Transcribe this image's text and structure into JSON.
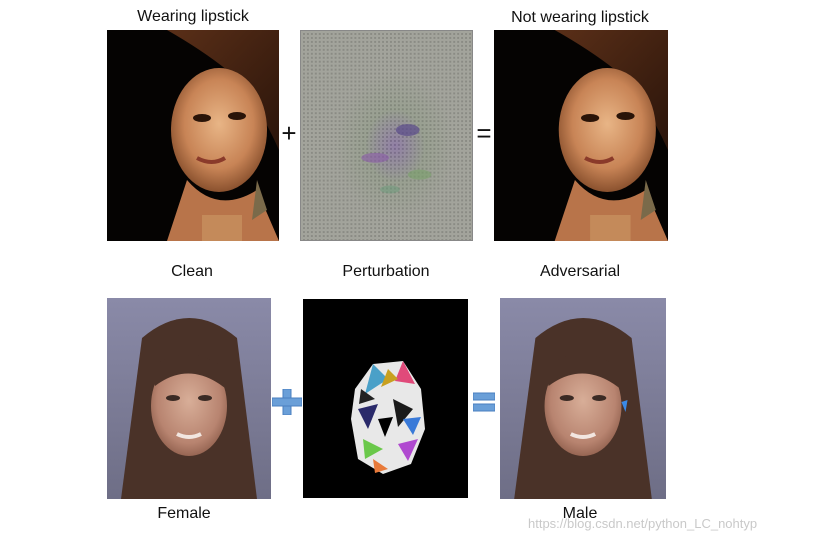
{
  "row1": {
    "labels": [
      "Wearing lipstick",
      "Not wearing lipstick"
    ]
  },
  "row2": {
    "column_labels": [
      "Clean",
      "Perturbation",
      "Adversarial"
    ],
    "bottom_labels": [
      "Female",
      "Male"
    ]
  },
  "operators": {
    "plus": "+",
    "equals": "="
  },
  "watermark": "https://blog.csdn.net/python_LC_nohtyp",
  "colors": {
    "operator_blue": "#6a9fd8",
    "noise_gray": "#a3a49c"
  }
}
